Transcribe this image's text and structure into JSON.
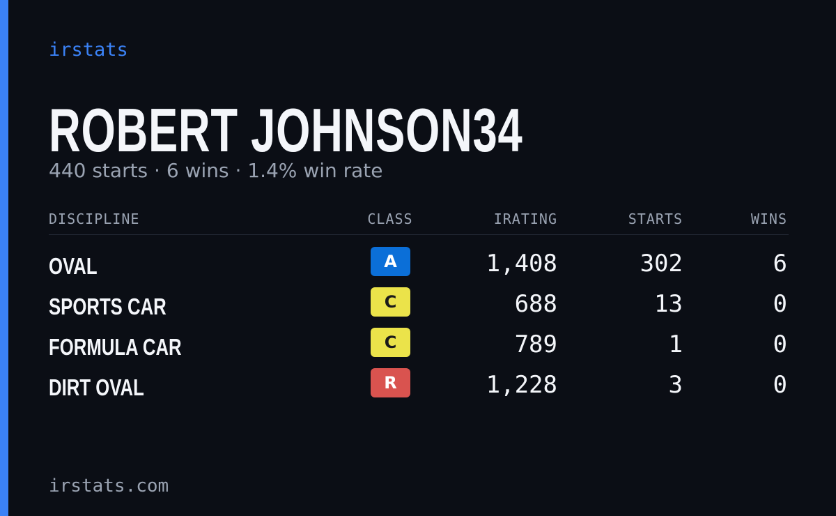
{
  "header": {
    "brand": "irstats",
    "name": "ROBERT JOHNSON34",
    "summary": "440 starts · 6 wins · 1.4% win rate"
  },
  "table": {
    "columns": [
      "DISCIPLINE",
      "CLASS",
      "IRATING",
      "STARTS",
      "WINS"
    ],
    "rows": [
      [
        "OVAL",
        "A",
        "1,408",
        302,
        6
      ],
      [
        "SPORTS CAR",
        "C",
        "688",
        13,
        0
      ],
      [
        "FORMULA CAR",
        "C",
        "789",
        1,
        0
      ],
      [
        "DIRT OVAL",
        "R",
        "1,228",
        3,
        0
      ]
    ],
    "class_colors": {
      "A": {
        "bg": "#0b6fd8",
        "fg": "#ffffff"
      },
      "C": {
        "bg": "#ebe34a",
        "fg": "#1a1a1a"
      },
      "R": {
        "bg": "#d9534f",
        "fg": "#ffffff"
      }
    }
  },
  "footer": {
    "site": "irstats.com"
  }
}
